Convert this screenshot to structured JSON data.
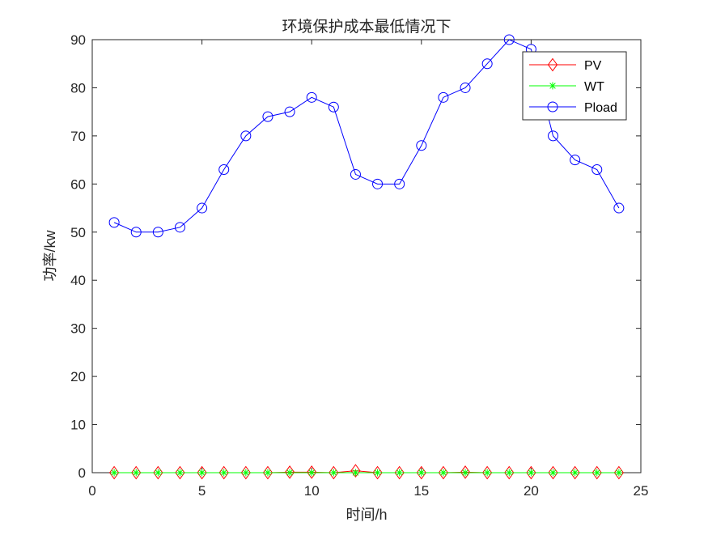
{
  "chart_data": {
    "type": "line",
    "title": "环境保护成本最低情况下",
    "xlabel": "时间/h",
    "ylabel": "功率/kw",
    "xlim": [
      0,
      25
    ],
    "ylim": [
      0,
      90
    ],
    "xticks": [
      0,
      5,
      10,
      15,
      20,
      25
    ],
    "yticks": [
      0,
      10,
      20,
      30,
      40,
      50,
      60,
      70,
      80,
      90
    ],
    "grid": false,
    "legend_position": "top-right",
    "x": [
      1,
      2,
      3,
      4,
      5,
      6,
      7,
      8,
      9,
      10,
      11,
      12,
      13,
      14,
      15,
      16,
      17,
      18,
      19,
      20,
      21,
      22,
      23,
      24
    ],
    "series": [
      {
        "name": "PV",
        "color": "#ff0000",
        "marker": "diamond",
        "values": [
          0,
          0,
          0,
          0,
          0,
          0,
          0,
          0,
          0.1,
          0.1,
          0,
          0.4,
          0,
          0,
          0,
          0,
          0.1,
          0,
          0,
          0,
          0,
          0,
          0,
          0
        ]
      },
      {
        "name": "WT",
        "color": "#00ff00",
        "marker": "asterisk",
        "values": [
          0,
          0,
          0,
          0,
          0,
          0,
          0,
          0,
          0,
          0,
          0,
          0,
          0,
          0,
          0,
          0,
          0,
          0,
          0,
          0,
          0,
          0,
          0,
          0
        ]
      },
      {
        "name": "Pload",
        "color": "#0000ff",
        "marker": "circle",
        "values": [
          52,
          50,
          50,
          51,
          55,
          63,
          70,
          74,
          75,
          78,
          76,
          62,
          60,
          60,
          68,
          78,
          80,
          85,
          90,
          88,
          70,
          65,
          63,
          55
        ]
      }
    ]
  }
}
